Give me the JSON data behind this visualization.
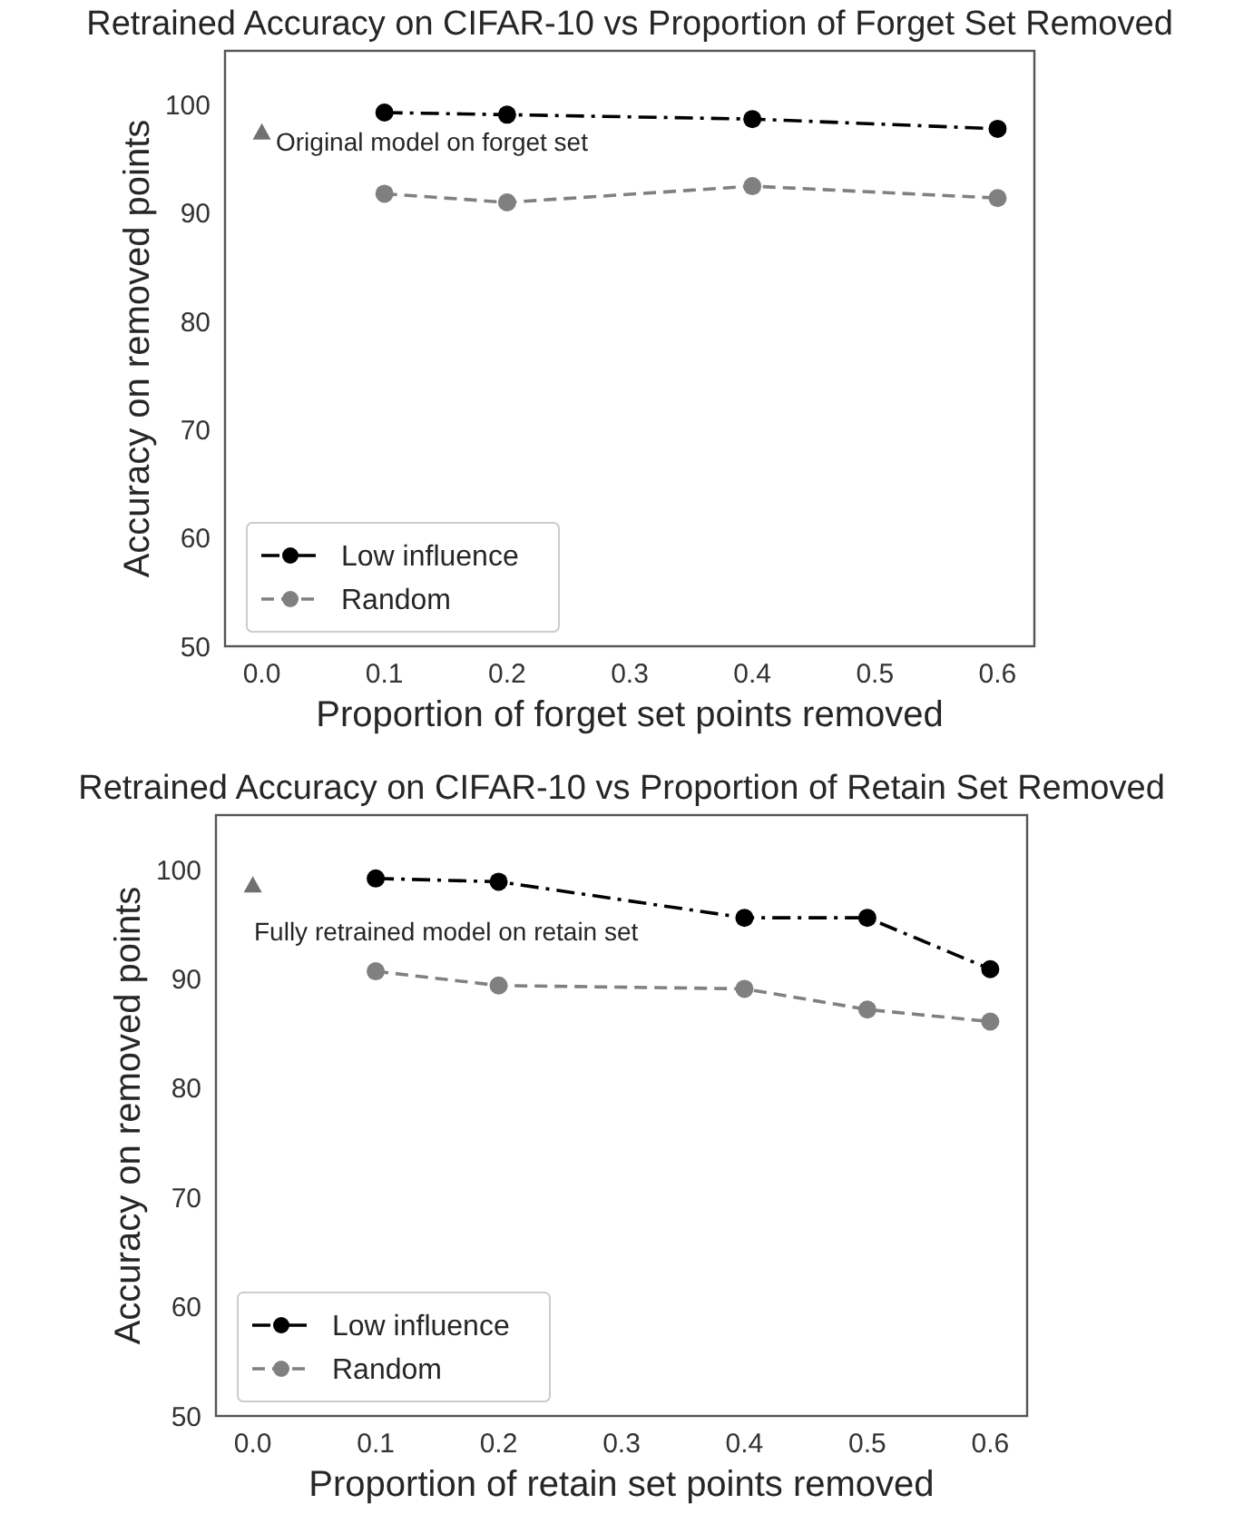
{
  "chart_data": [
    {
      "type": "line",
      "title": "Retrained Accuracy on CIFAR-10 vs Proportion of Forget Set Removed",
      "xlabel": "Proportion of forget set points removed",
      "ylabel": "Accuracy on removed points",
      "xlim": [
        -0.03,
        0.63
      ],
      "ylim": [
        50,
        105
      ],
      "xticks": [
        {
          "value": 0,
          "label": "0.0"
        },
        0.1,
        0.2,
        0.3,
        0.4,
        0.5,
        0.6
      ],
      "yticks": [
        50,
        60,
        70,
        80,
        90,
        100
      ],
      "grid": false,
      "legend": "bottom left",
      "marker": "circle",
      "series": [
        {
          "name": "Low influence",
          "color": "#000000",
          "line_style": "dashdot",
          "x": [
            0.1,
            0.2,
            0.4,
            0.6
          ],
          "values": [
            99.3,
            99.1,
            98.7,
            97.8
          ]
        },
        {
          "name": "Random",
          "color": "#808080",
          "line_style": "dashed",
          "x": [
            0.1,
            0.2,
            0.4,
            0.6
          ],
          "values": [
            91.8,
            91.0,
            92.5,
            91.4
          ]
        },
        {
          "type": "scatter",
          "color": "#707070",
          "marker": "triangle",
          "x": [
            0
          ],
          "values": [
            97.4
          ]
        }
      ],
      "annotations": [
        "Original model on forget set"
      ]
    },
    {
      "type": "line",
      "title": "Retrained Accuracy on CIFAR-10 vs Proportion of Retain Set Removed",
      "xlabel": "Proportion of retain set points removed",
      "ylabel": "Accuracy on removed points",
      "xlim": [
        -0.03,
        0.63
      ],
      "ylim": [
        50,
        105
      ],
      "xticks": [
        {
          "value": 0,
          "label": "0.0"
        },
        0.1,
        0.2,
        0.3,
        0.4,
        0.5,
        0.6
      ],
      "yticks": [
        50,
        60,
        70,
        80,
        90,
        100
      ],
      "grid": false,
      "legend": "bottom left",
      "marker": "circle",
      "series": [
        {
          "name": "Low influence",
          "color": "#000000",
          "line_style": "dashdot",
          "x": [
            0.1,
            0.2,
            0.4,
            0.5,
            0.6
          ],
          "values": [
            99.2,
            98.9,
            95.6,
            95.6,
            90.9
          ]
        },
        {
          "name": "Random",
          "color": "#808080",
          "line_style": "dashed",
          "x": [
            0.1,
            0.2,
            0.4,
            0.5,
            0.6
          ],
          "values": [
            90.7,
            89.4,
            89.1,
            87.2,
            86.1
          ]
        },
        {
          "type": "scatter",
          "color": "#707070",
          "marker": "triangle",
          "x": [
            0
          ],
          "values": [
            98.5
          ]
        }
      ],
      "annotations": [
        "Fully retrained model on retain set"
      ]
    }
  ]
}
